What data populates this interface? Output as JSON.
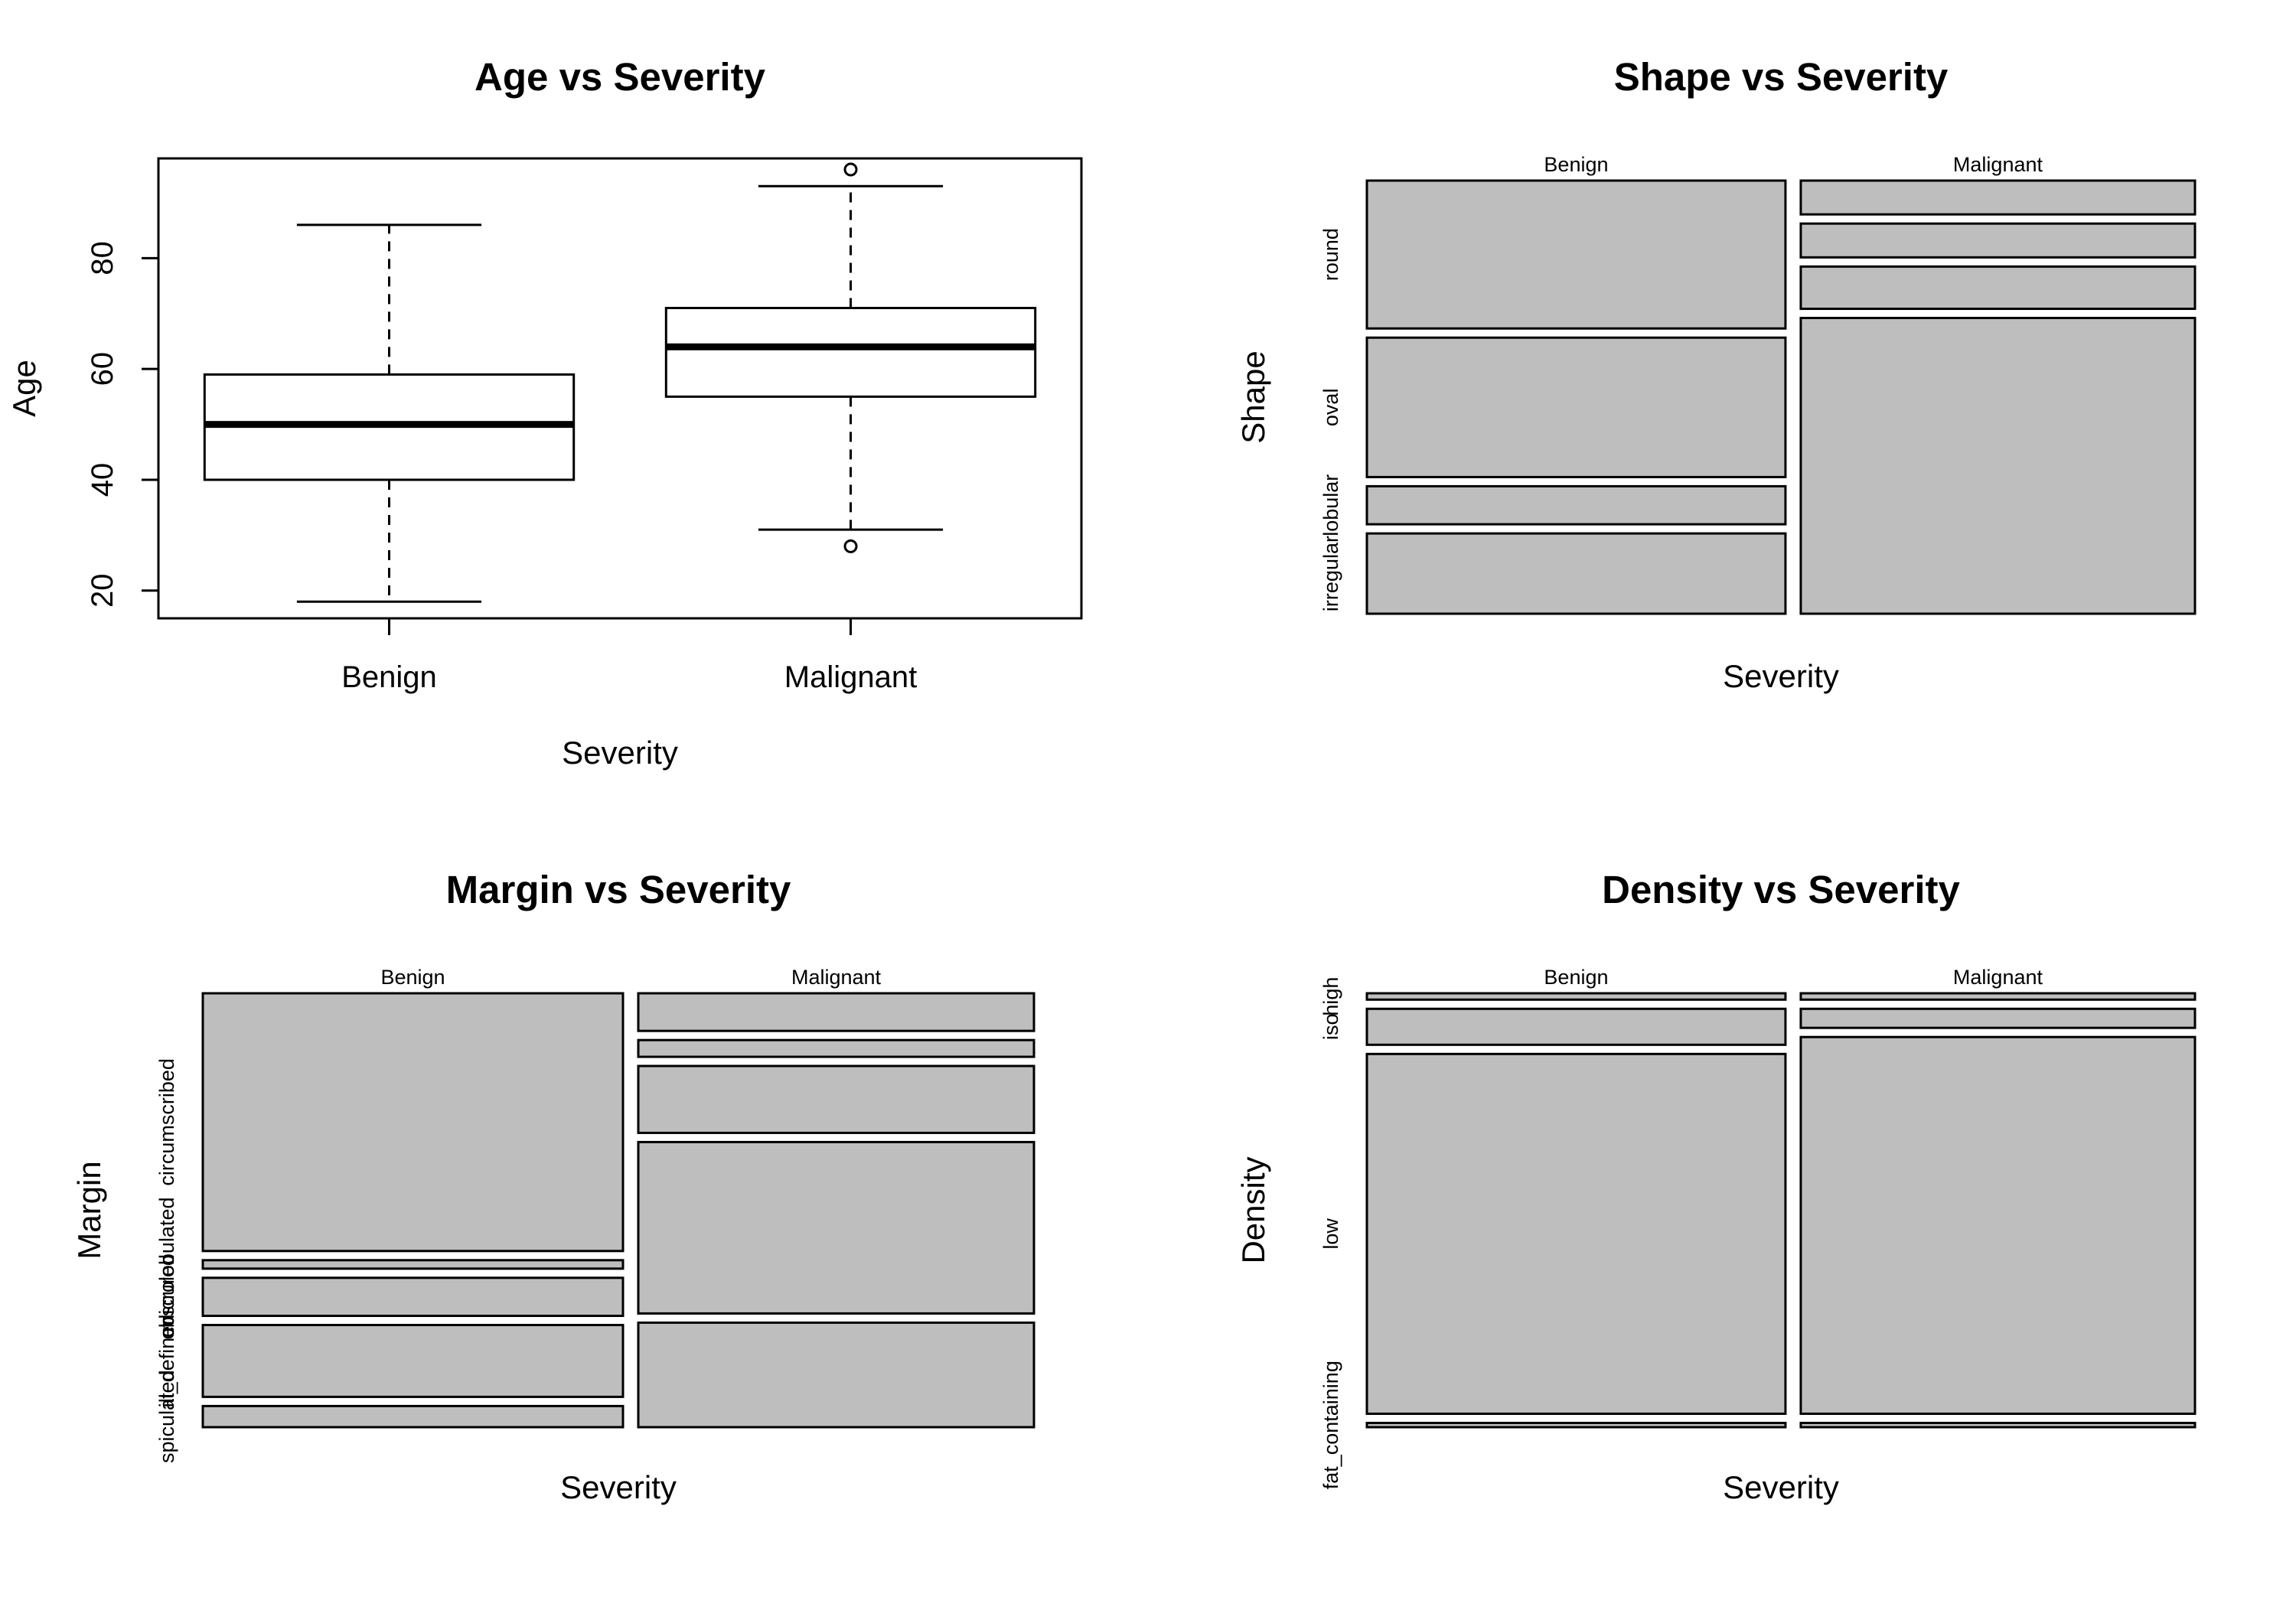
{
  "chart_data": [
    {
      "type": "box",
      "title": "Age vs Severity",
      "xlabel": "Severity",
      "ylabel": "Age",
      "categories": [
        "Benign",
        "Malignant"
      ],
      "yticks": [
        "20",
        "40",
        "60",
        "80"
      ],
      "ylim": [
        15,
        98
      ],
      "boxes": [
        {
          "category": "Benign",
          "min": 18,
          "q1": 40,
          "median": 50,
          "q3": 59,
          "max": 86,
          "outliers": []
        },
        {
          "category": "Malignant",
          "min": 31,
          "q1": 55,
          "median": 64,
          "q3": 71,
          "max": 93,
          "outliers": [
            96,
            28
          ]
        }
      ]
    },
    {
      "type": "mosaic",
      "title": "Shape  vs Severity",
      "xlabel": "Severity",
      "ylabel": "Shape",
      "columns": [
        {
          "name": "Benign",
          "share": 0.515
        },
        {
          "name": "Malignant",
          "share": 0.485
        }
      ],
      "levels": [
        "round",
        "oval",
        "lobular",
        "irregular"
      ],
      "values": {
        "Benign": [
          0.35,
          0.33,
          0.09,
          0.19
        ],
        "Malignant": [
          0.08,
          0.08,
          0.1,
          0.7
        ]
      }
    },
    {
      "type": "mosaic",
      "title": "Margin  vs Severity",
      "xlabel": "Severity",
      "ylabel": "Margin",
      "columns": [
        {
          "name": "Benign",
          "share": 0.515
        },
        {
          "name": "Malignant",
          "share": 0.485
        }
      ],
      "levels": [
        "circumscribed",
        "microlobulated",
        "obscured",
        "ill_defined",
        "spiculated"
      ],
      "values": {
        "Benign": [
          0.61,
          0.02,
          0.09,
          0.17,
          0.05
        ],
        "Malignant": [
          0.09,
          0.04,
          0.16,
          0.41,
          0.25
        ]
      }
    },
    {
      "type": "mosaic",
      "title": "Density  vs Severity",
      "xlabel": "Severity",
      "ylabel": "Density",
      "columns": [
        {
          "name": "Benign",
          "share": 0.515
        },
        {
          "name": "Malignant",
          "share": 0.485
        }
      ],
      "levels": [
        "high",
        "iso",
        "low",
        "fat_containing"
      ],
      "values": {
        "Benign": [
          0.015,
          0.085,
          0.85,
          0.01
        ],
        "Malignant": [
          0.015,
          0.045,
          0.89,
          0.01
        ]
      }
    }
  ]
}
